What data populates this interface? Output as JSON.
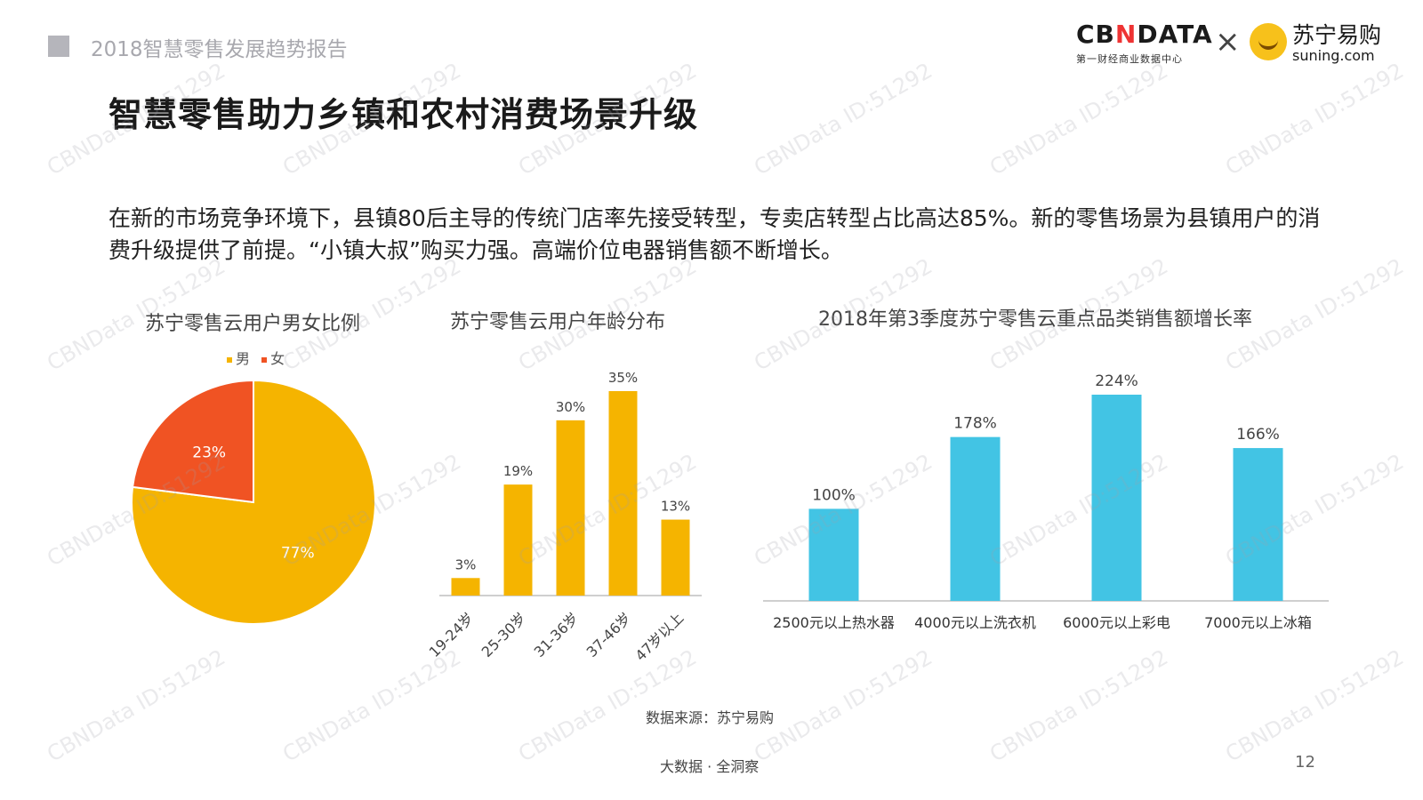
{
  "header": {
    "report_title": "2018智慧零售发展趋势报告",
    "logo_cbn_prefix": "CB",
    "logo_cbn_accent": "N",
    "logo_cbn_suffix": "DATA",
    "logo_cbn_sub": "第一财经商业数据中心",
    "logo_times": "×",
    "logo_suning_cn": "苏宁易购",
    "logo_suning_en": "suning.com"
  },
  "page_title": "智慧零售助力乡镇和农村消费场景升级",
  "body_text": "在新的市场竞争环境下，县镇80后主导的传统门店率先接受转型，专卖店转型占比高达85%。新的零售场景为县镇用户的消费升级提供了前提。“小镇大叔”购买力强。高端价位电器销售额不断增长。",
  "colors": {
    "male": "#f5b400",
    "female": "#f05323",
    "bar_age": "#f5b400",
    "bar_growth": "#42c4e4"
  },
  "chart_data": [
    {
      "type": "pie",
      "title": "苏宁零售云用户男女比例",
      "legend": [
        "男",
        "女"
      ],
      "legend_position": "top",
      "slices": [
        {
          "name": "男",
          "value": 77,
          "label": "77%"
        },
        {
          "name": "女",
          "value": 23,
          "label": "23%"
        }
      ]
    },
    {
      "type": "bar",
      "title": "苏宁零售云用户年龄分布",
      "categories": [
        "19-24岁",
        "25-30岁",
        "31-36岁",
        "37-46岁",
        "47岁以上"
      ],
      "values": [
        3,
        19,
        30,
        35,
        13
      ],
      "data_labels": [
        "3%",
        "19%",
        "30%",
        "35%",
        "13%"
      ],
      "ylim": [
        0,
        35
      ],
      "grid": false
    },
    {
      "type": "bar",
      "title": "2018年第3季度苏宁零售云重点品类销售额增长率",
      "categories": [
        "2500元以上热水器",
        "4000元以上洗衣机",
        "6000元以上彩电",
        "7000元以上冰箱"
      ],
      "values": [
        100,
        178,
        224,
        166
      ],
      "data_labels": [
        "100%",
        "178%",
        "224%",
        "166%"
      ],
      "ylim": [
        0,
        224
      ],
      "grid": false
    }
  ],
  "source": "数据来源：苏宁易购",
  "footer": "大数据 · 全洞察",
  "page_number": "12",
  "watermark_text": "CBNData ID:51292"
}
